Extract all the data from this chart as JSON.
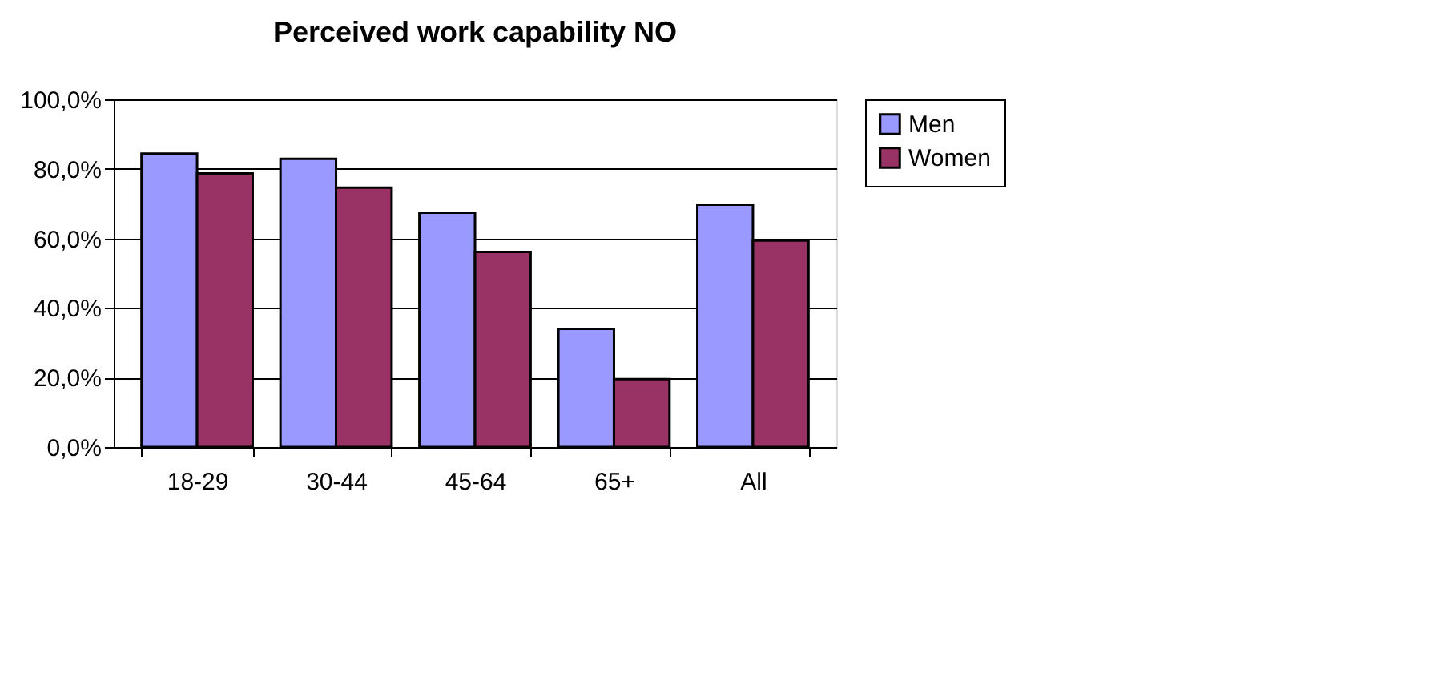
{
  "chart_data": {
    "type": "bar",
    "title": "Perceived work capability NO",
    "categories": [
      "18-29",
      "30-44",
      "45-64",
      "65+",
      "All"
    ],
    "series": [
      {
        "name": "Men",
        "color": "#9999ff",
        "values": [
          84.4,
          82.9,
          67.4,
          34.0,
          69.7
        ]
      },
      {
        "name": "Women",
        "color": "#993366",
        "values": [
          78.7,
          74.6,
          56.1,
          19.5,
          59.4
        ]
      }
    ],
    "ylim": [
      0,
      100
    ],
    "yticks": [
      {
        "value": 0,
        "label": "0,0%"
      },
      {
        "value": 20,
        "label": "20,0%"
      },
      {
        "value": 40,
        "label": "40,0%"
      },
      {
        "value": 60,
        "label": "60,0%"
      },
      {
        "value": 80,
        "label": "80,0%"
      },
      {
        "value": 100,
        "label": "100,0%"
      }
    ],
    "grid": "y",
    "legend": "right"
  }
}
